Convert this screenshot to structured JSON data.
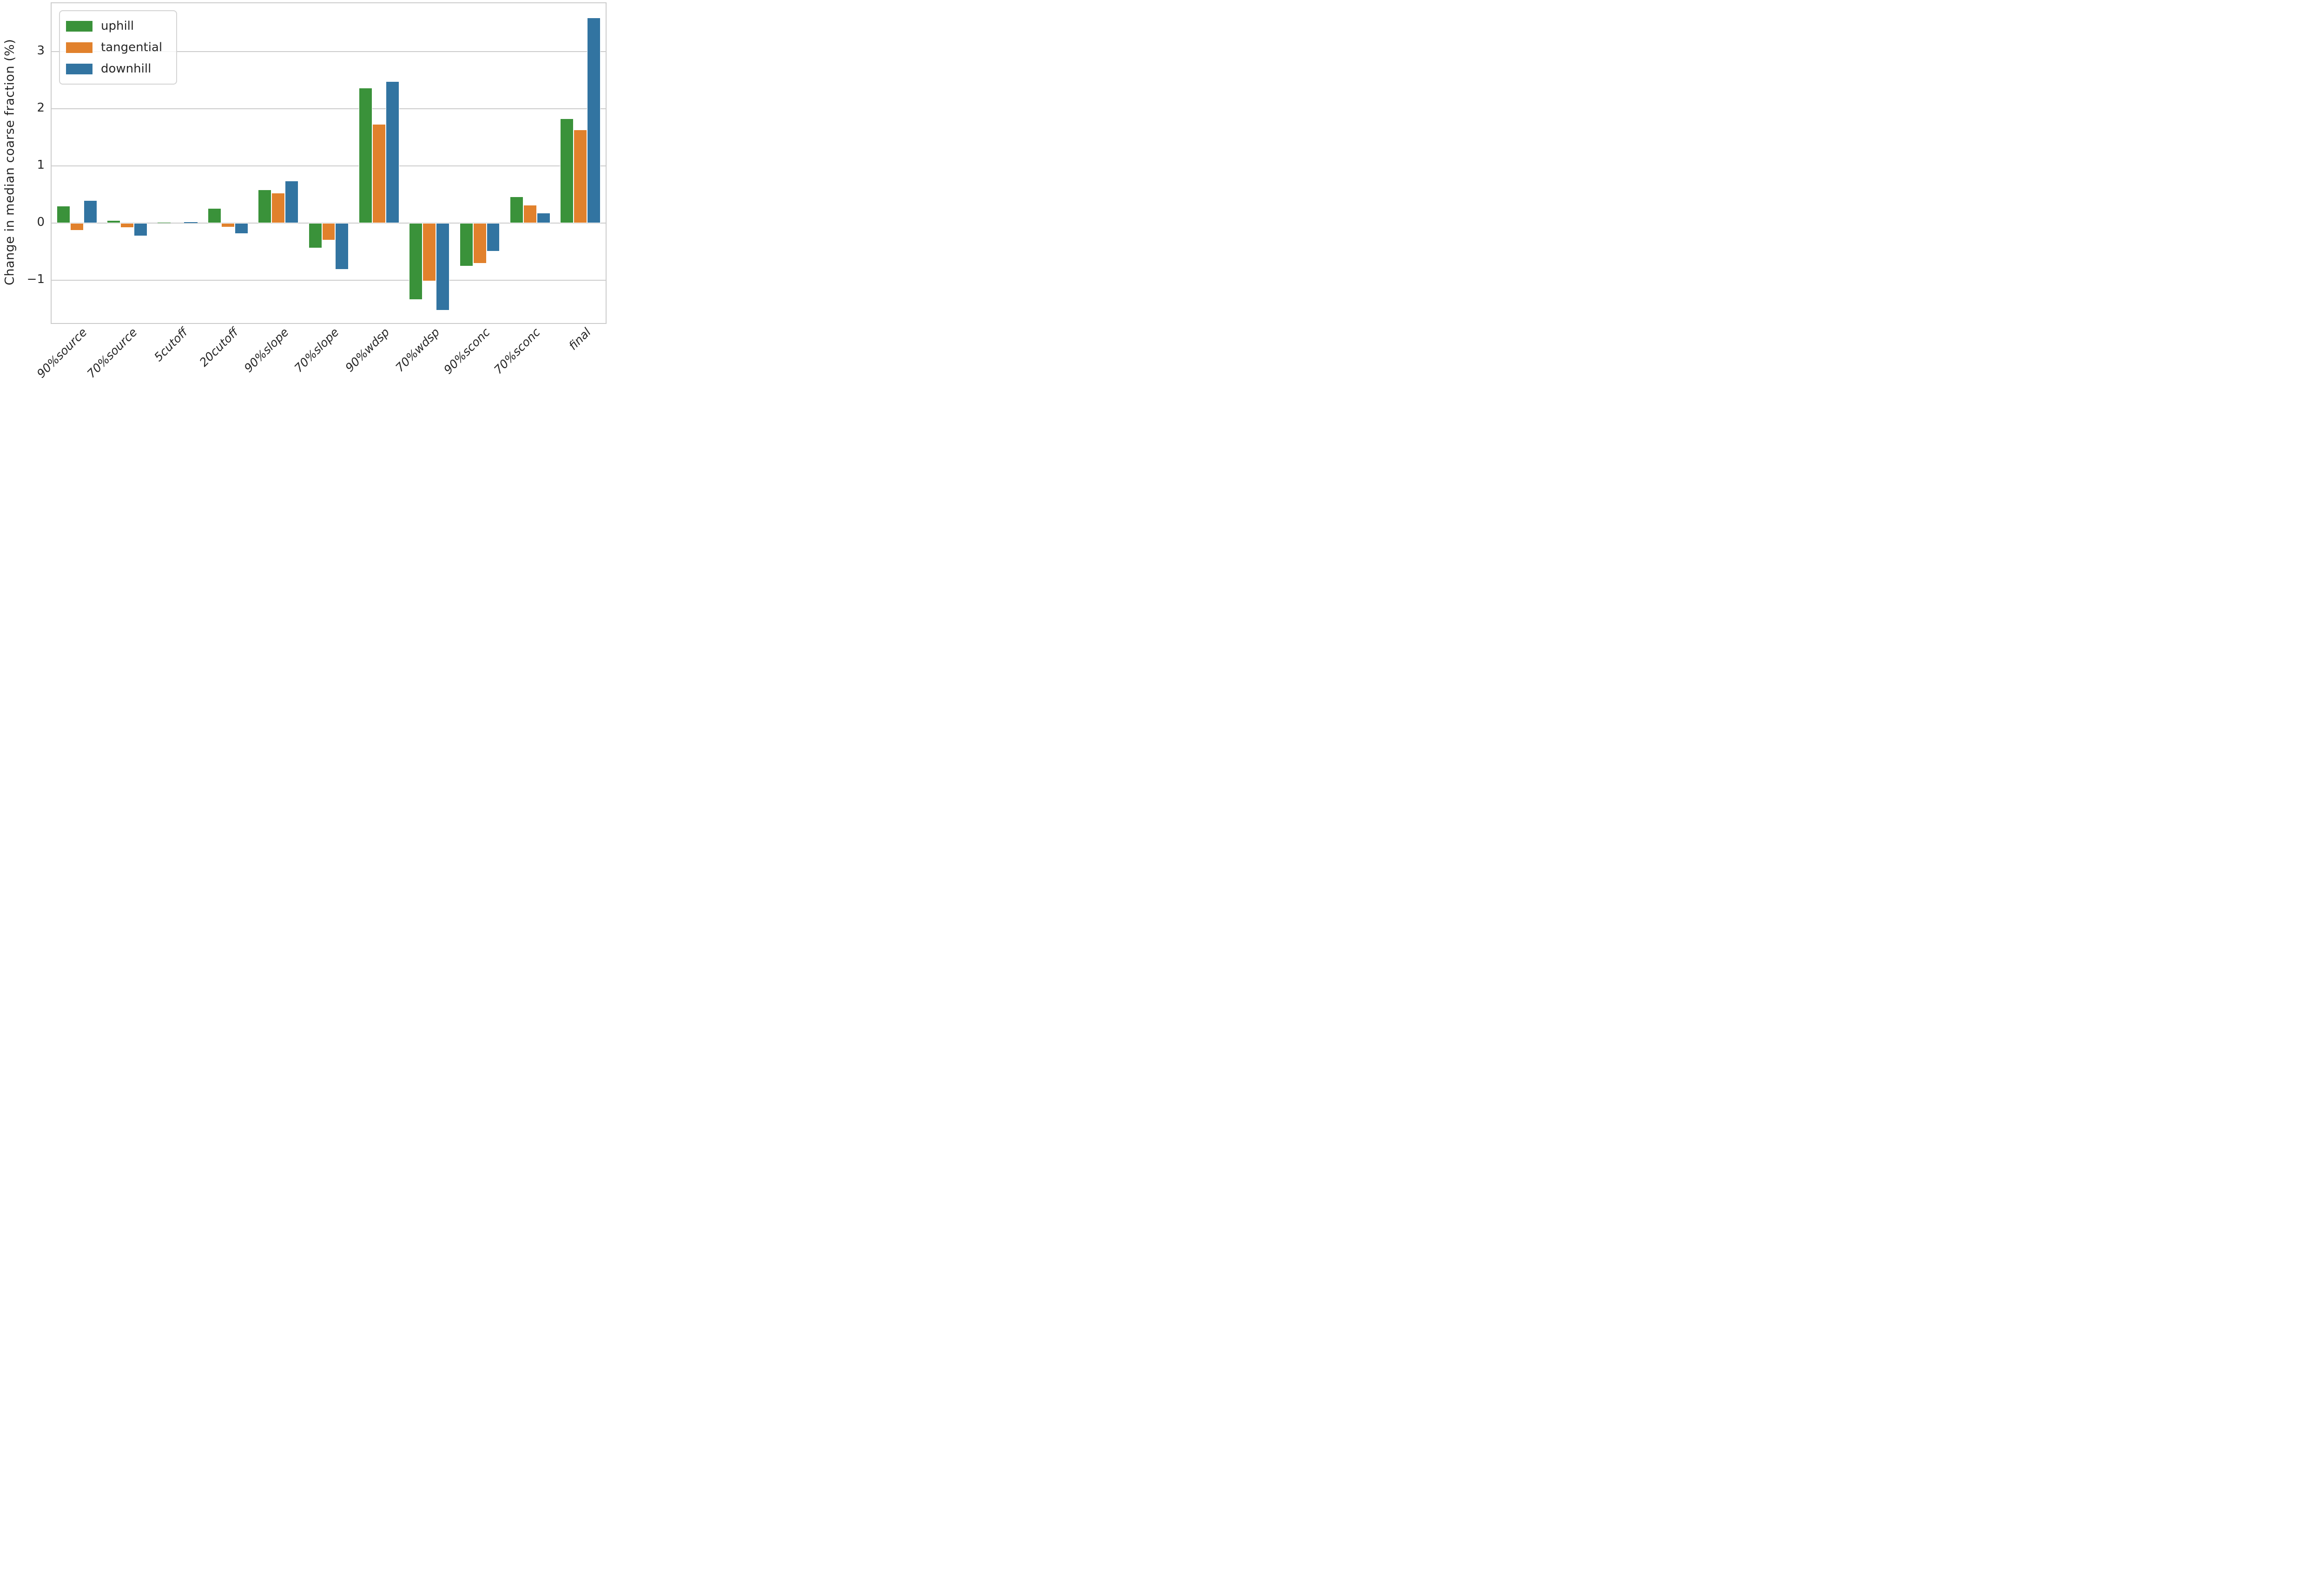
{
  "figure": {
    "background": "#ffffff",
    "text_color": "#262626",
    "axis_color": "#cccccc",
    "grid_color": "#cccccc"
  },
  "chart_data": {
    "type": "bar",
    "title": "",
    "xlabel": "",
    "ylabel": "Change in median coarse fraction (%)",
    "categories": [
      "90%source",
      "70%source",
      "5cutoff",
      "20cutoff",
      "90%slope",
      "70%slope",
      "90%wdsp",
      "70%wdsp",
      "90%sconc",
      "70%sconc",
      "final"
    ],
    "series": [
      {
        "name": "uphill",
        "color": "#3a923a",
        "values": [
          0.3,
          0.05,
          0.01,
          0.26,
          0.59,
          -0.44,
          2.37,
          -1.34,
          -0.76,
          0.46,
          1.83
        ]
      },
      {
        "name": "tangential",
        "color": "#e1812c",
        "values": [
          -0.13,
          -0.08,
          0.0,
          -0.07,
          0.53,
          -0.3,
          1.73,
          -1.02,
          -0.71,
          0.32,
          1.64
        ]
      },
      {
        "name": "downhill",
        "color": "#3274a1",
        "values": [
          0.4,
          -0.23,
          0.02,
          -0.19,
          0.74,
          -0.81,
          2.48,
          -1.53,
          -0.5,
          0.18,
          3.6
        ]
      }
    ],
    "yticks": [
      -1,
      0,
      1,
      2,
      3
    ],
    "ylim": [
      -1.75,
      3.85
    ],
    "grid": "horizontal",
    "legend_position": "upper left",
    "bar_group_width": 0.8
  }
}
